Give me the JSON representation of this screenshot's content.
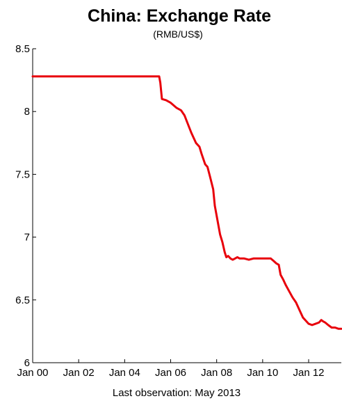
{
  "chart_data": {
    "type": "line",
    "title": "China: Exchange Rate",
    "subtitle": "(RMB/US$)",
    "footnote": "Last observation: May 2013",
    "xlim": [
      2000.0,
      2013.42
    ],
    "ylim": [
      6,
      8.5
    ],
    "x_ticks": [
      {
        "value": 2000,
        "label": "Jan 00"
      },
      {
        "value": 2002,
        "label": "Jan 02"
      },
      {
        "value": 2004,
        "label": "Jan 04"
      },
      {
        "value": 2006,
        "label": "Jan 06"
      },
      {
        "value": 2008,
        "label": "Jan 08"
      },
      {
        "value": 2010,
        "label": "Jan 10"
      },
      {
        "value": 2012,
        "label": "Jan 12"
      }
    ],
    "y_ticks": [
      {
        "value": 6,
        "label": "6"
      },
      {
        "value": 6.5,
        "label": "6.5"
      },
      {
        "value": 7,
        "label": "7"
      },
      {
        "value": 7.5,
        "label": "7.5"
      },
      {
        "value": 8,
        "label": "8"
      },
      {
        "value": 8.5,
        "label": "8.5"
      }
    ],
    "series": [
      {
        "color": "#e8000b",
        "points": [
          [
            2000.0,
            8.28
          ],
          [
            2005.5,
            8.28
          ],
          [
            2005.55,
            8.23
          ],
          [
            2005.62,
            8.1
          ],
          [
            2005.8,
            8.09
          ],
          [
            2006.0,
            8.07
          ],
          [
            2006.25,
            8.03
          ],
          [
            2006.45,
            8.01
          ],
          [
            2006.6,
            7.97
          ],
          [
            2006.75,
            7.9
          ],
          [
            2006.9,
            7.83
          ],
          [
            2007.1,
            7.75
          ],
          [
            2007.25,
            7.72
          ],
          [
            2007.35,
            7.66
          ],
          [
            2007.5,
            7.58
          ],
          [
            2007.6,
            7.56
          ],
          [
            2007.7,
            7.49
          ],
          [
            2007.85,
            7.38
          ],
          [
            2007.92,
            7.25
          ],
          [
            2008.05,
            7.12
          ],
          [
            2008.15,
            7.02
          ],
          [
            2008.25,
            6.96
          ],
          [
            2008.35,
            6.88
          ],
          [
            2008.42,
            6.84
          ],
          [
            2008.5,
            6.85
          ],
          [
            2008.6,
            6.83
          ],
          [
            2008.7,
            6.82
          ],
          [
            2008.8,
            6.83
          ],
          [
            2008.9,
            6.84
          ],
          [
            2009.0,
            6.83
          ],
          [
            2009.2,
            6.83
          ],
          [
            2009.4,
            6.82
          ],
          [
            2009.6,
            6.83
          ],
          [
            2009.8,
            6.83
          ],
          [
            2010.0,
            6.83
          ],
          [
            2010.35,
            6.83
          ],
          [
            2010.48,
            6.81
          ],
          [
            2010.6,
            6.79
          ],
          [
            2010.7,
            6.78
          ],
          [
            2010.78,
            6.7
          ],
          [
            2010.9,
            6.66
          ],
          [
            2011.0,
            6.62
          ],
          [
            2011.15,
            6.57
          ],
          [
            2011.3,
            6.52
          ],
          [
            2011.45,
            6.48
          ],
          [
            2011.6,
            6.42
          ],
          [
            2011.75,
            6.36
          ],
          [
            2011.9,
            6.33
          ],
          [
            2012.0,
            6.31
          ],
          [
            2012.15,
            6.3
          ],
          [
            2012.3,
            6.31
          ],
          [
            2012.45,
            6.32
          ],
          [
            2012.55,
            6.34
          ],
          [
            2012.62,
            6.33
          ],
          [
            2012.72,
            6.32
          ],
          [
            2012.85,
            6.3
          ],
          [
            2013.0,
            6.28
          ],
          [
            2013.15,
            6.28
          ],
          [
            2013.3,
            6.27
          ],
          [
            2013.42,
            6.27
          ]
        ]
      }
    ]
  }
}
